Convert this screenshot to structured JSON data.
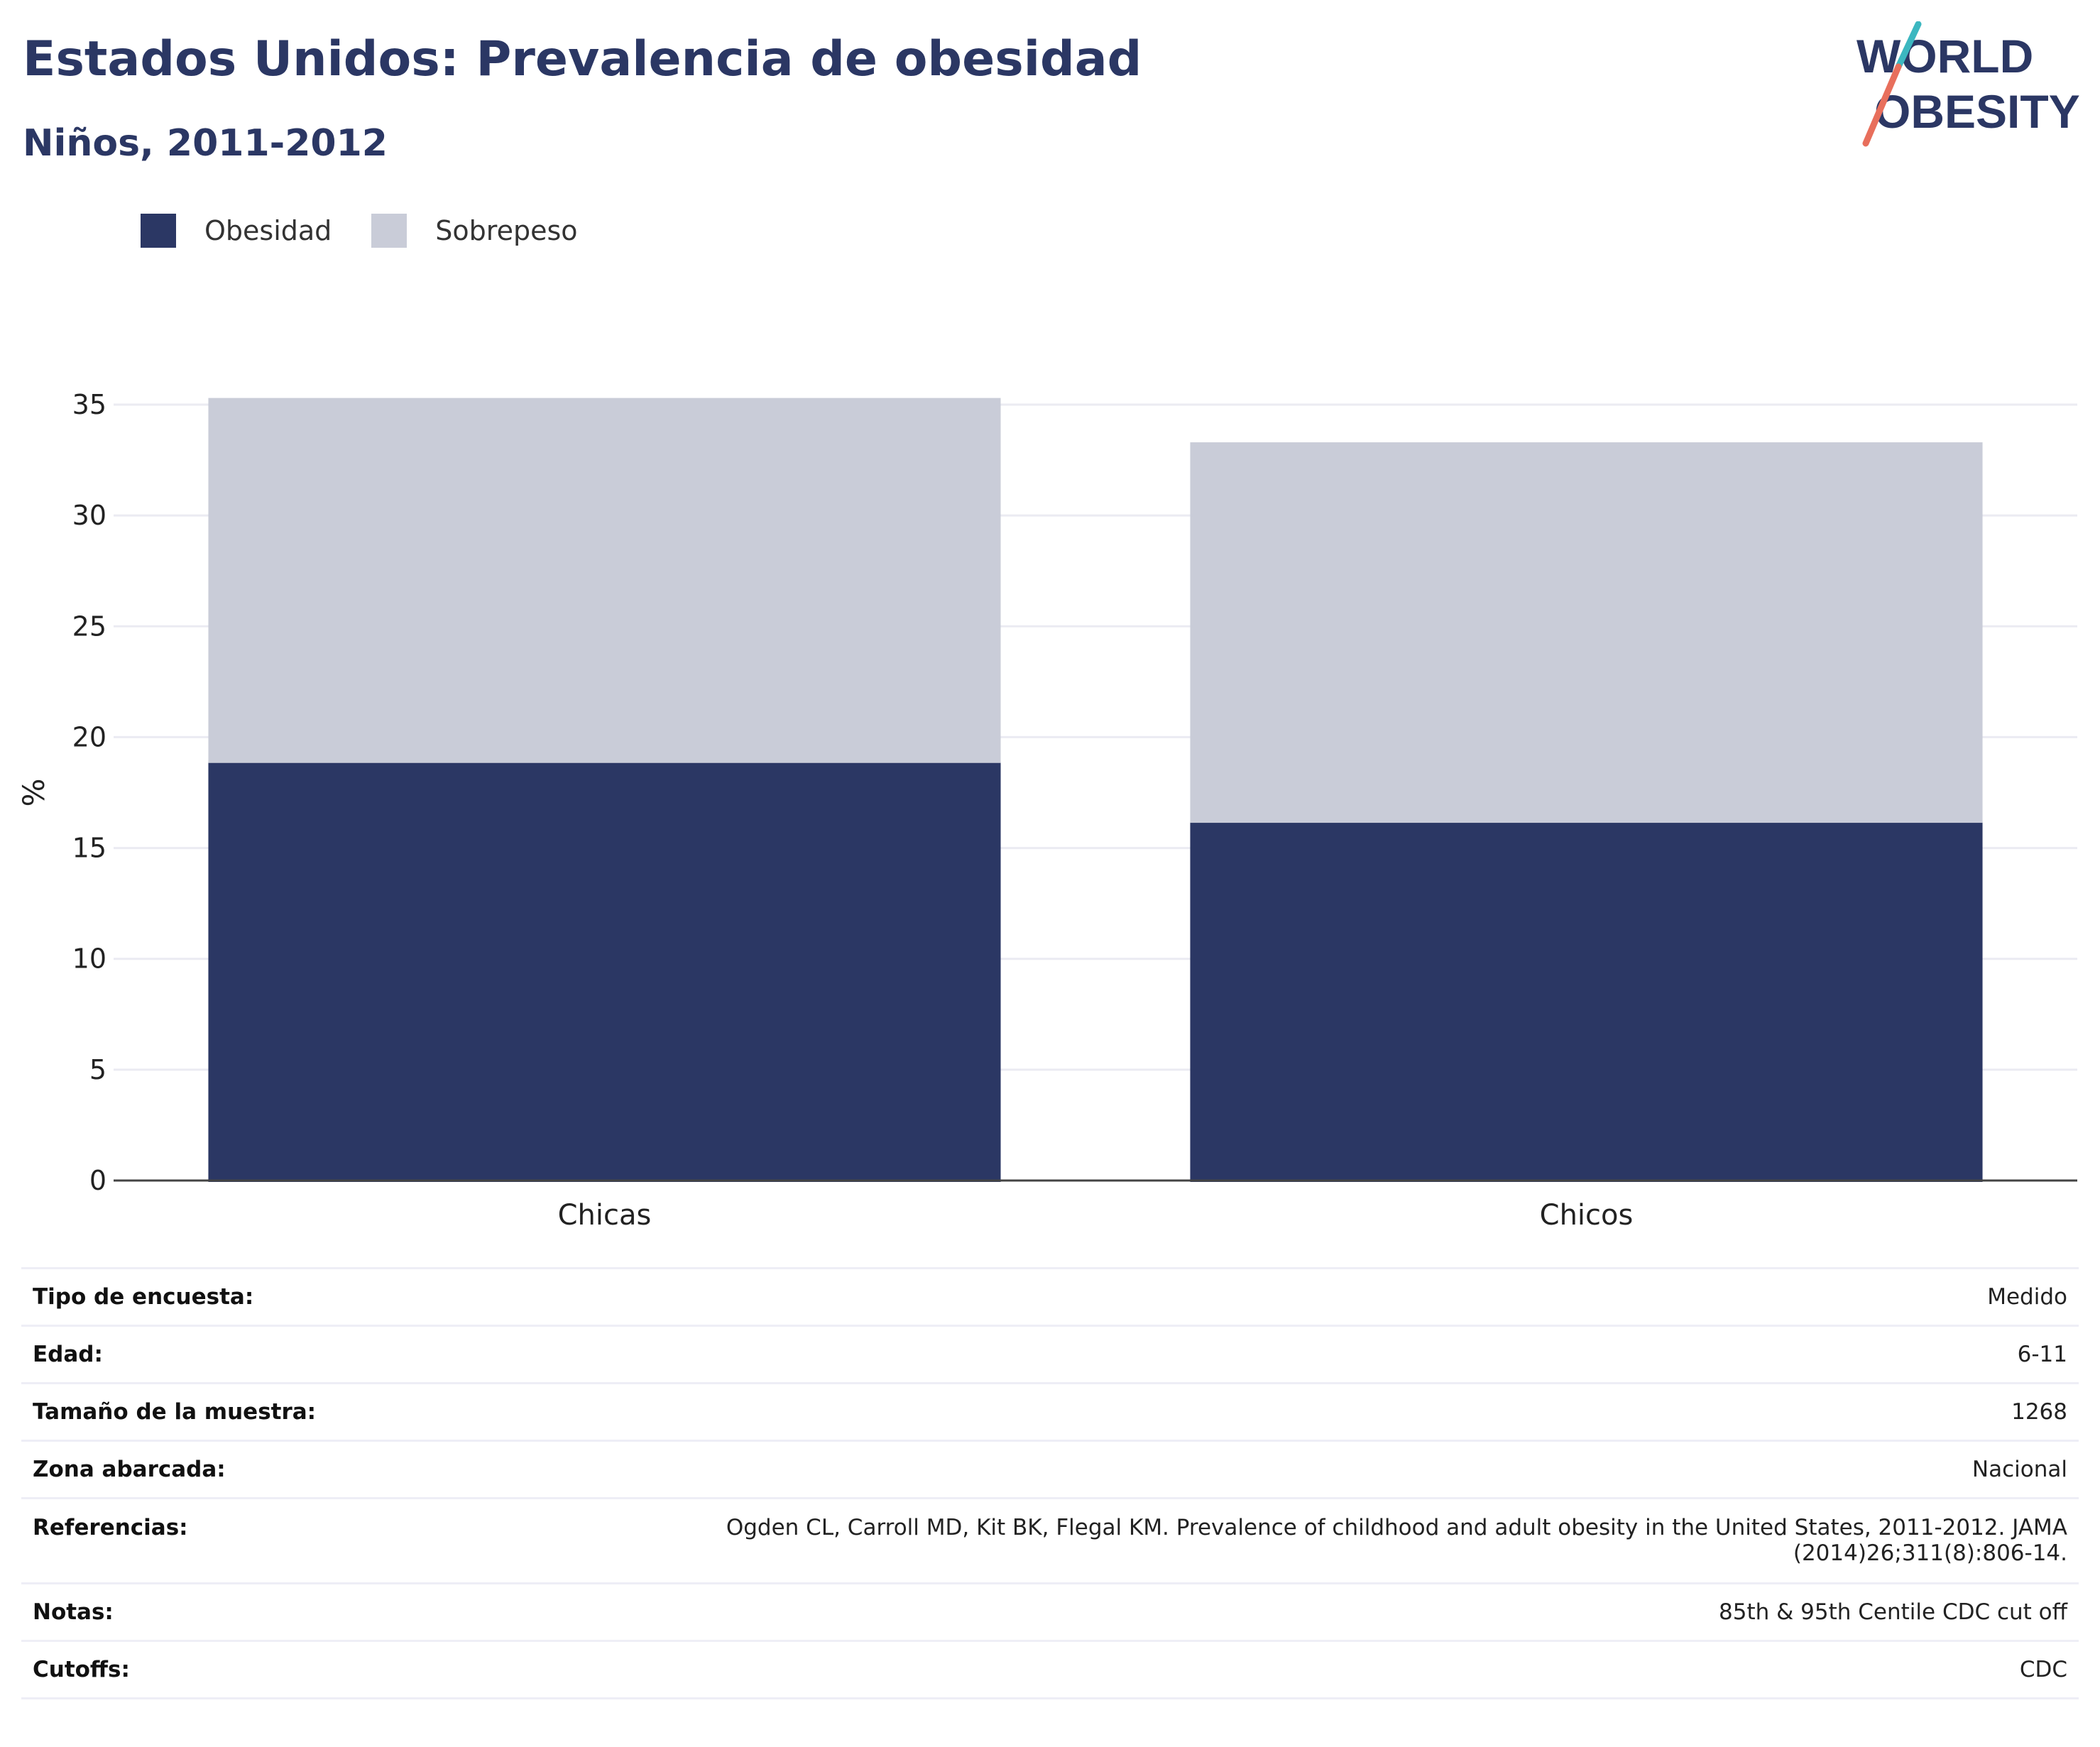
{
  "title": "Estados Unidos: Prevalencia de obesidad",
  "subtitle": "Niños, 2011-2012",
  "logo": {
    "line1": "WORLD",
    "line2": "OBESITY"
  },
  "legend": [
    {
      "label": "Obesidad",
      "color": "#2b3764"
    },
    {
      "label": "Sobrepeso",
      "color": "#c9ccd8"
    }
  ],
  "chart_data": {
    "type": "bar",
    "stacked": true,
    "categories": [
      "Chicas",
      "Chicos"
    ],
    "series": [
      {
        "name": "Obesidad",
        "values": [
          18.9,
          16.2
        ],
        "color": "#2b3764"
      },
      {
        "name": "Sobrepeso",
        "values": [
          16.4,
          17.1
        ],
        "color": "#c9ccd8"
      }
    ],
    "ylabel": "%",
    "ylim": [
      0,
      35
    ],
    "yticks": [
      0,
      5,
      10,
      15,
      20,
      25,
      30,
      35
    ],
    "grid": true,
    "legend_position": "top-left"
  },
  "meta": [
    {
      "key": "Tipo de encuesta:",
      "value": "Medido"
    },
    {
      "key": "Edad:",
      "value": "6-11"
    },
    {
      "key": "Tamaño de la muestra:",
      "value": "1268"
    },
    {
      "key": "Zona abarcada:",
      "value": "Nacional"
    },
    {
      "key": "Referencias:",
      "value_line1": "Ogden CL, Carroll MD, Kit BK, Flegal KM. Prevalence of childhood and adult obesity in the United States, 2011-2012. JAMA",
      "value_line2": "(2014)26;311(8):806-14."
    },
    {
      "key": "Notas:",
      "value": "85th & 95th Centile CDC cut off"
    },
    {
      "key": "Cutoffs:",
      "value": "CDC"
    }
  ]
}
